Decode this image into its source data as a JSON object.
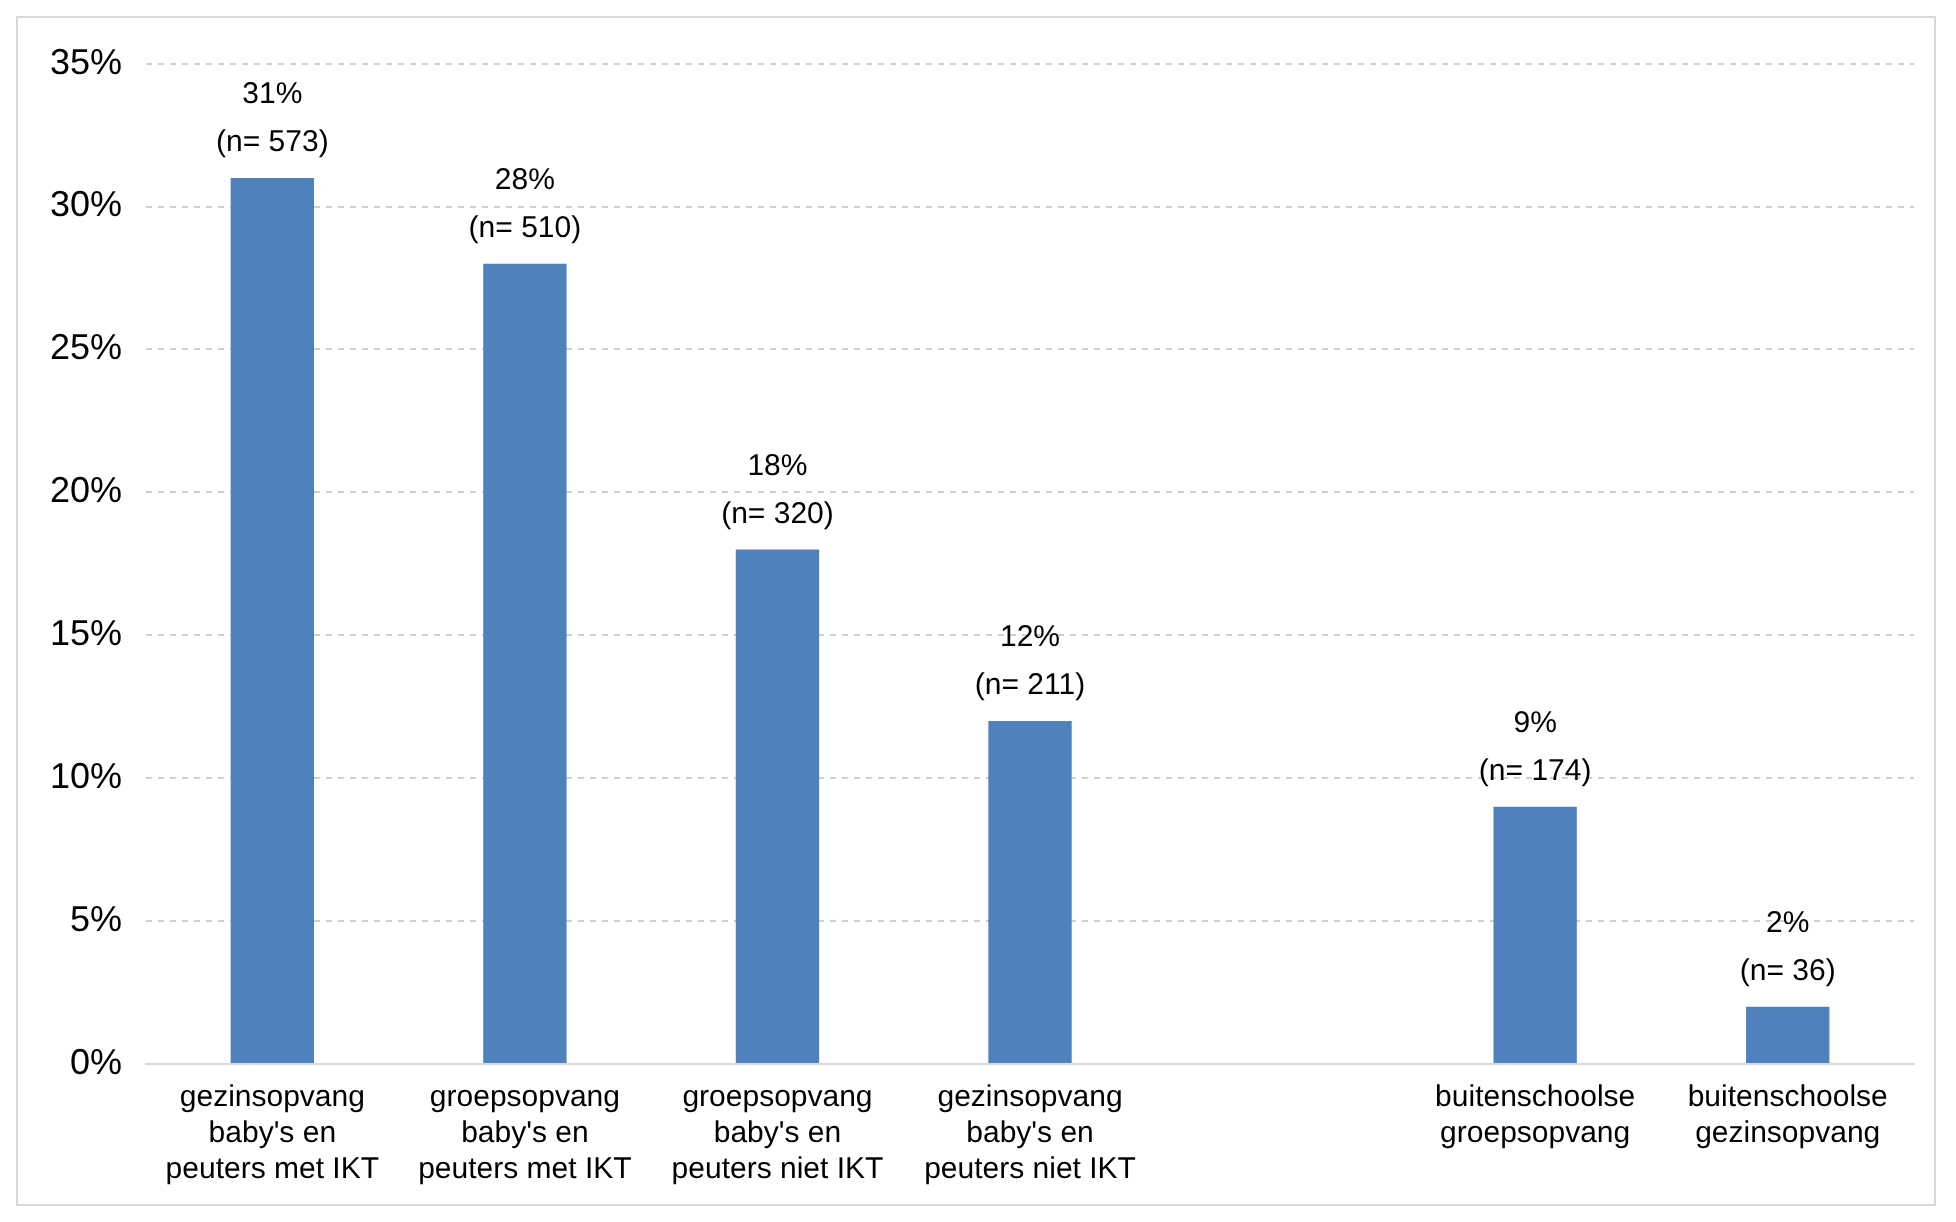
{
  "chart_data": {
    "type": "bar",
    "categories": [
      "gezinsopvang\nbaby's en\npeuters met IKT",
      "groepsopvang\nbaby's en\npeuters met IKT",
      "groepsopvang\nbaby's en\npeuters niet IKT",
      "gezinsopvang\nbaby's en\npeuters niet IKT",
      null,
      "buitenschoolse\ngroepsopvang",
      "buitenschoolse\ngezinsopvang"
    ],
    "values": [
      31,
      28,
      18,
      12,
      null,
      9,
      2
    ],
    "value_labels": [
      "31%\n(n= 573)",
      "28%\n(n= 510)",
      "18%\n(n= 320)",
      "12%\n(n= 211)",
      null,
      "9%\n(n= 174)",
      "2%\n(n= 36)"
    ],
    "color": "#4f81bd",
    "ylim": [
      0,
      35
    ],
    "yticks": [
      {
        "value": 0,
        "label": "0%"
      },
      {
        "value": 5,
        "label": "5%"
      },
      {
        "value": 10,
        "label": "10%"
      },
      {
        "value": 15,
        "label": "15%"
      },
      {
        "value": 20,
        "label": "20%"
      },
      {
        "value": 25,
        "label": "25%"
      },
      {
        "value": 30,
        "label": "30%"
      },
      {
        "value": 35,
        "label": "35%"
      }
    ],
    "grid": "y",
    "legend": false
  }
}
